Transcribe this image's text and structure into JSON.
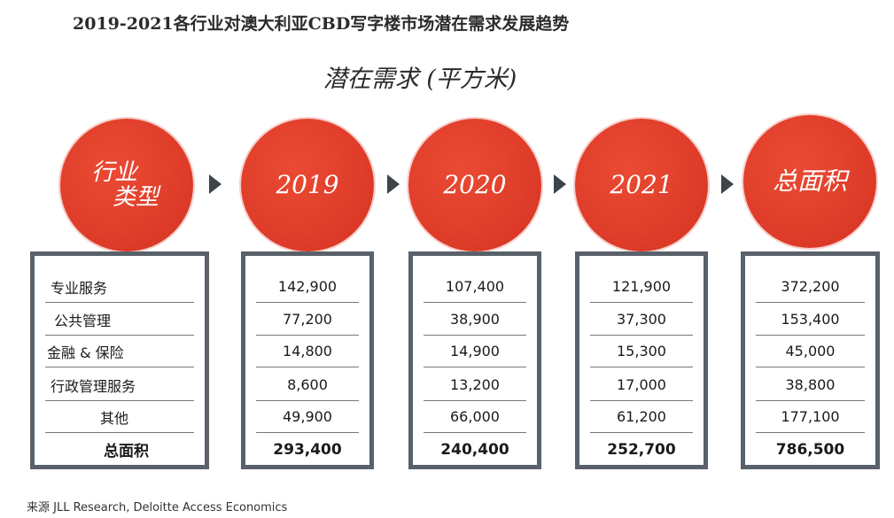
{
  "title": "2019-2021各行业对澳大利亚CBD写字楼市场潜在需求发展趋势",
  "subtitle": "潜在需求 (平方米)",
  "headers": [
    "行业类型",
    "2019",
    "2020",
    "2021",
    "总面积"
  ],
  "header_first_lines": [
    "行业",
    "类型"
  ],
  "source": "来源 JLL Research, Deloitte Access Economics",
  "colors": {
    "circle": "#df3d2a",
    "border": "#59616a",
    "arrow": "#3e4449"
  },
  "chart_data": {
    "type": "table",
    "title": "2019-2021各行业对澳大利亚CBD写字楼市场潜在需求发展趋势",
    "subtitle": "潜在需求 (平方米)",
    "columns": [
      "行业类型",
      "2019",
      "2020",
      "2021",
      "总面积"
    ],
    "rows": [
      [
        "专业服务",
        "142,900",
        "107,400",
        "121,900",
        "372,200"
      ],
      [
        "公共管理",
        "77,200",
        "38,900",
        "37,300",
        "153,400"
      ],
      [
        "金融 & 保险",
        "14,800",
        "14,900",
        "15,300",
        "45,000"
      ],
      [
        "行政管理服务",
        "8,600",
        "13,200",
        "17,000",
        "38,800"
      ],
      [
        "其他",
        "49,900",
        "66,000",
        "61,200",
        "177,100"
      ],
      [
        "总面积",
        "293,400",
        "240,400",
        "252,700",
        "786,500"
      ]
    ]
  }
}
